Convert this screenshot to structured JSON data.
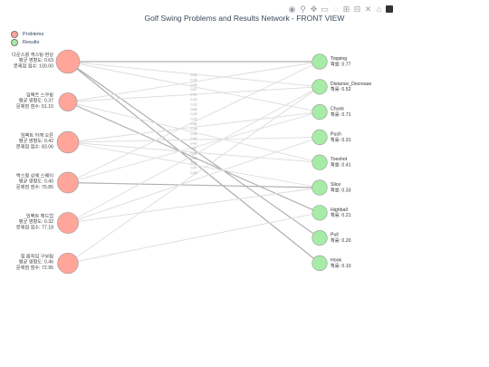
{
  "title": "Golf Swing Problems and Results Network - FRONT VIEW",
  "toolbar": [
    "camera-icon",
    "zoom-icon",
    "pan-icon",
    "box-select-icon",
    "lasso-icon",
    "zoom-in-icon",
    "zoom-out-icon",
    "autoscale-icon",
    "reset-icon",
    "plotly-logo-icon"
  ],
  "legend": [
    {
      "label": "Problems",
      "color": "#ffa59a"
    },
    {
      "label": "Results",
      "color": "#a6eca6"
    }
  ],
  "colors": {
    "problem": "#ffa59a",
    "problem_border": "#999999",
    "result": "#a6eca6",
    "result_border": "#999999",
    "edge_light": "#dddddd",
    "edge_dark": "#b0b0b0"
  },
  "chart_data": {
    "type": "network",
    "problems": [
      {
        "name": "다운스윙 캐스팅 현상",
        "avg_line": "평균 영향도: 0.63",
        "score_line": "문제점 점수: 100.00",
        "score": 100.0
      },
      {
        "name": "임팩트 스쿠핑",
        "avg_line": "평균 영향도: 0.37",
        "score_line": "문제점 점수: 51.15",
        "score": 51.15
      },
      {
        "name": "임팩트 어깨 오픈",
        "avg_line": "평균 영향도: 0.42",
        "score_line": "문제점 점수: 83.06",
        "score": 83.06
      },
      {
        "name": "백스윙 상체 스웨이",
        "avg_line": "평균 영향도: 0.40",
        "score_line": "문제점 점수: 75.85",
        "score": 75.85
      },
      {
        "name": "임팩트 헤드업",
        "avg_line": "평균 영향도: 0.32",
        "score_line": "문제점 점수: 77.18",
        "score": 77.18
      },
      {
        "name": "힙 움직임 구부림",
        "avg_line": "평균 영향도: 0.46",
        "score_line": "문제점 점수: 72.95",
        "score": 72.95
      }
    ],
    "results": [
      {
        "name": "Topping",
        "prob_line": "확률: 0.77"
      },
      {
        "name": "Distance_Decrease",
        "prob_line": "확률: 0.52"
      },
      {
        "name": "Chunk",
        "prob_line": "확률: 0.71"
      },
      {
        "name": "Push",
        "prob_line": "확률: 0.31"
      },
      {
        "name": "Toeshot",
        "prob_line": "확률: 0.41"
      },
      {
        "name": "Slice",
        "prob_line": "확률: 0.33"
      },
      {
        "name": "Highball",
        "prob_line": "확률: 0.21"
      },
      {
        "name": "Pull",
        "prob_line": "확률: 0.20"
      },
      {
        "name": "Hook",
        "prob_line": "확률: 0.10"
      }
    ],
    "edges": [
      {
        "from": 0,
        "to": 0,
        "w": 0.63,
        "label": "0.23"
      },
      {
        "from": 0,
        "to": 1,
        "w": 0.4,
        "label": "0.28"
      },
      {
        "from": 0,
        "to": 2,
        "w": 0.4,
        "label": "0.35"
      },
      {
        "from": 0,
        "to": 7,
        "w": 0.63,
        "label": "0.67"
      },
      {
        "from": 0,
        "to": 8,
        "w": 0.7,
        "label": "0.41"
      },
      {
        "from": 1,
        "to": 0,
        "w": 0.4,
        "label": "0.19"
      },
      {
        "from": 1,
        "to": 1,
        "w": 0.35,
        "label": "0.31"
      },
      {
        "from": 1,
        "to": 4,
        "w": 0.4,
        "label": "0.85"
      },
      {
        "from": 1,
        "to": 6,
        "w": 0.6,
        "label": "0.29"
      },
      {
        "from": 2,
        "to": 2,
        "w": 0.4,
        "label": "0.33"
      },
      {
        "from": 2,
        "to": 3,
        "w": 0.35,
        "label": "0.36"
      },
      {
        "from": 2,
        "to": 4,
        "w": 0.4,
        "label": "0.38"
      },
      {
        "from": 2,
        "to": 5,
        "w": 0.35,
        "label": "0.35"
      },
      {
        "from": 3,
        "to": 0,
        "w": 0.4,
        "label": "0.40"
      },
      {
        "from": 3,
        "to": 2,
        "w": 0.35,
        "label": "0.42"
      },
      {
        "from": 3,
        "to": 5,
        "w": 0.6,
        "label": "0.47"
      },
      {
        "from": 4,
        "to": 1,
        "w": 0.35,
        "label": "0.42"
      },
      {
        "from": 4,
        "to": 3,
        "w": 0.4,
        "label": "0.40"
      },
      {
        "from": 4,
        "to": 5,
        "w": 0.4,
        "label": "0.73"
      },
      {
        "from": 5,
        "to": 1,
        "w": 0.4,
        "label": "0.47"
      },
      {
        "from": 5,
        "to": 6,
        "w": 0.4,
        "label": "0.43"
      }
    ]
  }
}
